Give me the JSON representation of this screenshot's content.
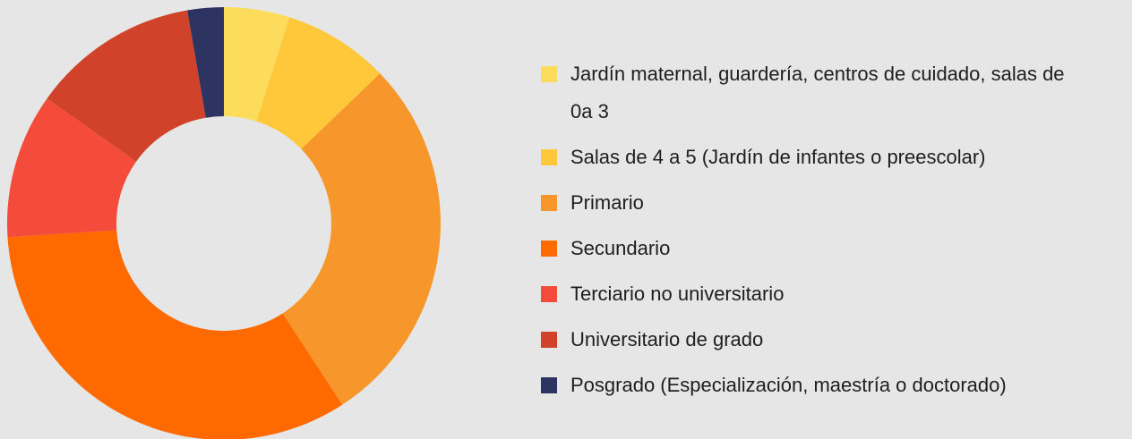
{
  "chart_data": {
    "type": "donut",
    "categories": [
      "Jardín maternal, guardería, centros de cuidado, salas de 0a 3",
      "Salas de 4 a 5 (Jardín de infantes o preescolar)",
      "Primario",
      "Secundario",
      "Terciario no universitario",
      "Universitario de grado",
      "Posgrado (Especialización, maestría o doctorado)"
    ],
    "values": [
      4.9,
      7.9,
      28,
      33.2,
      10.8,
      12.5,
      2.7
    ],
    "colors": [
      "#fcdc5a",
      "#fec83a",
      "#f7962b",
      "#ff6a00",
      "#f44b3b",
      "#d0432a",
      "#2d3461"
    ]
  }
}
